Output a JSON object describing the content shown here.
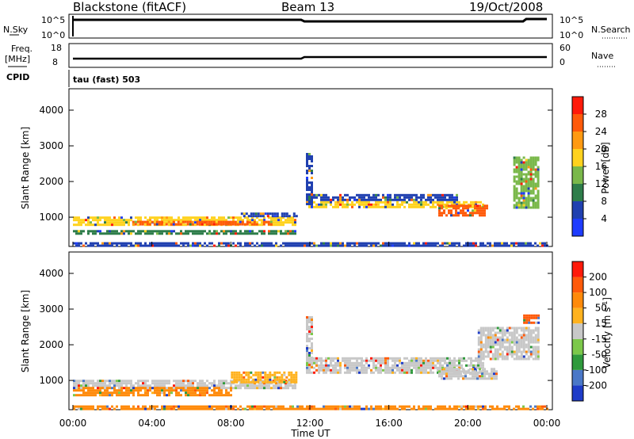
{
  "header": {
    "station": "Blackstone (fitACF)",
    "beam": "Beam 13",
    "date": "19/Oct/2008"
  },
  "params": {
    "nsky_label": "N.Sky",
    "nsky_ticks": [
      "10^5",
      "10^0"
    ],
    "nsearch_label": "N.Search",
    "freq_label": "Freq.",
    "freq_unit": "[MHz]",
    "freq_ticks": [
      "18",
      "8"
    ],
    "nave_label": "Nave",
    "nave_ticks": [
      "60",
      "0"
    ],
    "cpid_label": "CPID",
    "cpid_value": "tau (fast) 503"
  },
  "x_axis": {
    "label": "Time UT",
    "ticks": [
      "00:00",
      "04:00",
      "08:00",
      "12:00",
      "16:00",
      "20:00",
      "00:00"
    ]
  },
  "chart_data": [
    {
      "type": "heatmap",
      "title": "",
      "xlabel": "Time UT",
      "ylabel": "Slant Range [km]",
      "x_range": [
        0,
        24
      ],
      "y_range": [
        180,
        4600
      ],
      "y_ticks": [
        1000,
        2000,
        3000,
        4000
      ],
      "colorbar": {
        "label": "Power [dB]",
        "ticks": [
          "4",
          "8",
          "12",
          "16",
          "20",
          "24",
          "28"
        ],
        "colors": [
          "#1e3cff",
          "#2040b0",
          "#2e7d4a",
          "#7ab84a",
          "#ffd21e",
          "#ff9a12",
          "#ff5a0a",
          "#ff1a0a"
        ]
      },
      "echo_bands": [
        {
          "t0": 0.0,
          "t1": 11.3,
          "r0": 820,
          "r1": 1020,
          "value": 17
        },
        {
          "t0": 3.0,
          "t1": 10.0,
          "r0": 800,
          "r1": 900,
          "value": 25
        },
        {
          "t0": 8.5,
          "t1": 11.3,
          "r0": 1000,
          "r1": 1130,
          "value": 7
        },
        {
          "t0": 0.0,
          "t1": 11.3,
          "r0": 560,
          "r1": 640,
          "value": 10
        },
        {
          "t0": 11.8,
          "t1": 20.8,
          "r0": 1300,
          "r1": 1450,
          "value": 16
        },
        {
          "t0": 11.8,
          "t1": 19.5,
          "r0": 1500,
          "r1": 1650,
          "value": 7
        },
        {
          "t0": 18.5,
          "t1": 21.0,
          "r0": 1050,
          "r1": 1350,
          "value": 27
        },
        {
          "t0": 22.3,
          "t1": 23.6,
          "r0": 1300,
          "r1": 2700,
          "value": 15
        },
        {
          "t0": 11.8,
          "t1": 12.1,
          "r0": 1400,
          "r1": 2800,
          "value": 6
        },
        {
          "t0": 0.0,
          "t1": 24.0,
          "r0": 200,
          "r1": 300,
          "value": 5
        }
      ]
    },
    {
      "type": "heatmap",
      "title": "",
      "xlabel": "Time UT",
      "ylabel": "Slant Range [km]",
      "x_range": [
        0,
        24
      ],
      "y_range": [
        180,
        4600
      ],
      "y_ticks": [
        1000,
        2000,
        3000,
        4000
      ],
      "colorbar": {
        "label": "Velocity [m s^-1]",
        "ticks": [
          "200",
          "100",
          "50",
          "15",
          "-15",
          "-50",
          "-100",
          "-200"
        ],
        "colors": [
          "#1e3cc8",
          "#4a78c8",
          "#2f9a3c",
          "#7cc84a",
          "#c8c8c8",
          "#ffb21e",
          "#ff8a0a",
          "#ff5a0a",
          "#ff1a0a"
        ]
      },
      "echo_bands": [
        {
          "t0": 0.0,
          "t1": 11.3,
          "r0": 820,
          "r1": 1020,
          "value": 0
        },
        {
          "t0": 0.0,
          "t1": 8.0,
          "r0": 560,
          "r1": 820,
          "value": -60
        },
        {
          "t0": 8.0,
          "t1": 11.3,
          "r0": 920,
          "r1": 1250,
          "value": -50
        },
        {
          "t0": 11.8,
          "t1": 20.8,
          "r0": 1200,
          "r1": 1650,
          "value": 0
        },
        {
          "t0": 18.5,
          "t1": 21.5,
          "r0": 1050,
          "r1": 1350,
          "value": 0
        },
        {
          "t0": 20.5,
          "t1": 23.6,
          "r0": 1600,
          "r1": 2500,
          "value": 0
        },
        {
          "t0": 22.8,
          "t1": 23.6,
          "r0": 2600,
          "r1": 2850,
          "value": -150
        },
        {
          "t0": 0.0,
          "t1": 24.0,
          "r0": 200,
          "r1": 300,
          "value": -60
        },
        {
          "t0": 11.8,
          "t1": 12.1,
          "r0": 1400,
          "r1": 2800,
          "value": 0
        }
      ]
    }
  ]
}
